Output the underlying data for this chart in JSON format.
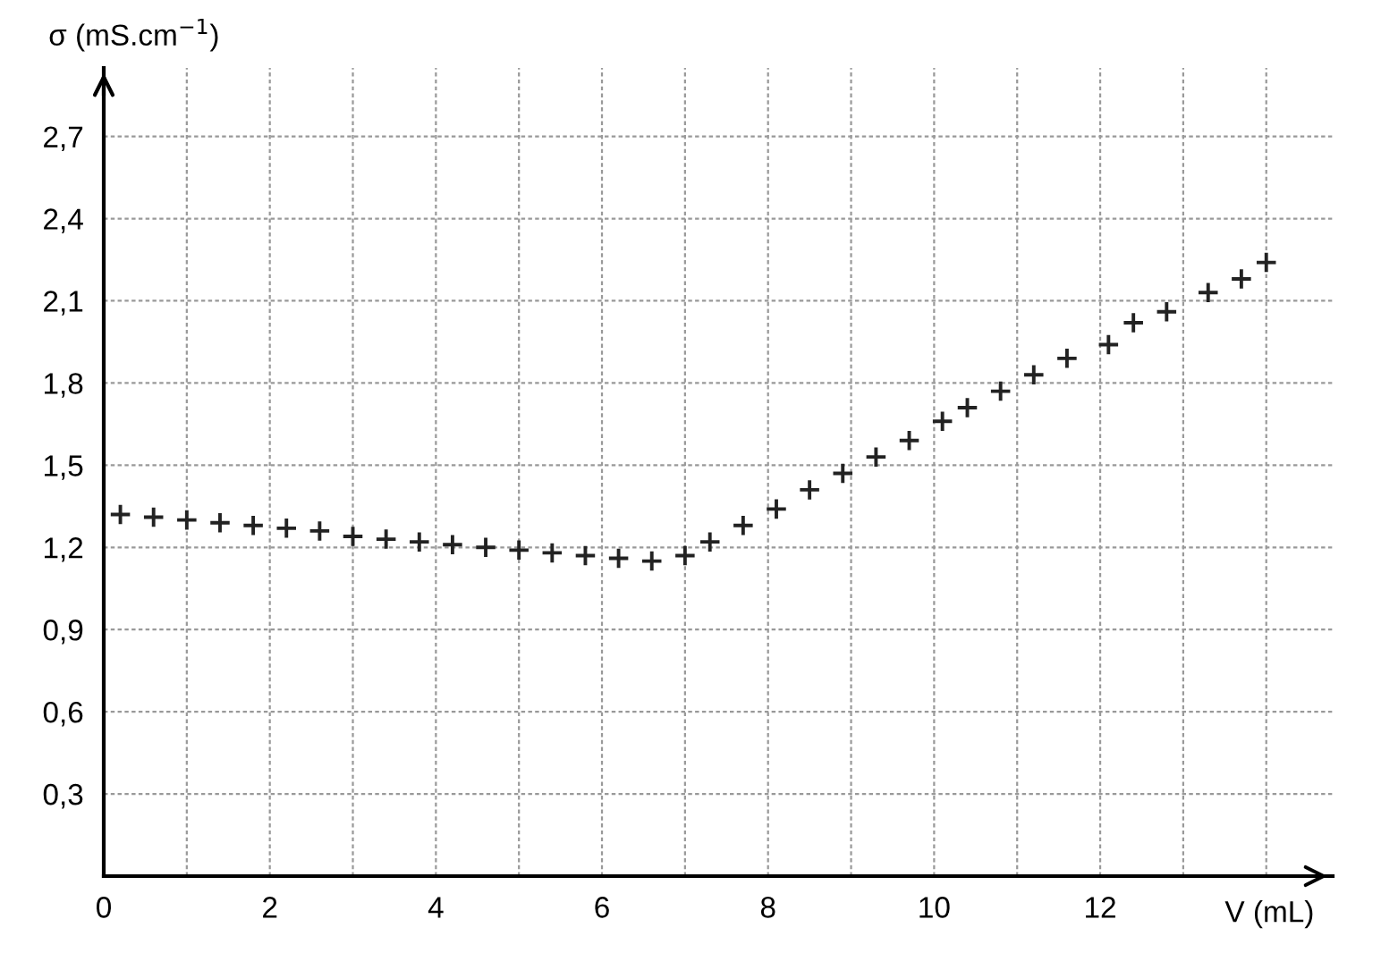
{
  "chart_data": {
    "type": "scatter",
    "xlabel": "V (mL)",
    "ylabel": "σ (mS.cm$^{−1}$)",
    "x": [
      0.2,
      0.6,
      1.0,
      1.4,
      1.8,
      2.2,
      2.6,
      3.0,
      3.4,
      3.8,
      4.2,
      4.6,
      5.0,
      5.4,
      5.8,
      6.2,
      6.6,
      7.0,
      7.3,
      7.7,
      8.1,
      8.5,
      8.9,
      9.3,
      9.7,
      10.1,
      10.4,
      10.8,
      11.2,
      11.6,
      12.1,
      12.4,
      12.8,
      13.3,
      13.7,
      14.0
    ],
    "series": [
      {
        "color": "#222222",
        "values": [
          1.32,
          1.31,
          1.3,
          1.29,
          1.28,
          1.27,
          1.26,
          1.24,
          1.23,
          1.22,
          1.21,
          1.2,
          1.19,
          1.18,
          1.17,
          1.16,
          1.15,
          1.17,
          1.22,
          1.28,
          1.34,
          1.41,
          1.47,
          1.53,
          1.59,
          1.66,
          1.71,
          1.77,
          1.83,
          1.89,
          1.94,
          2.02,
          2.06,
          2.13,
          2.18,
          2.24
        ]
      }
    ],
    "xlim": [
      0,
      14.8
    ],
    "ylim": [
      0,
      2.95
    ],
    "xticks": [
      0,
      {
        "value": 1,
        "label": null
      },
      2,
      {
        "value": 3,
        "label": null
      },
      4,
      {
        "value": 5,
        "label": null
      },
      6,
      {
        "value": 7,
        "label": null
      },
      8,
      {
        "value": 9,
        "label": null
      },
      10,
      {
        "value": 11,
        "label": null
      },
      12,
      {
        "value": 13,
        "label": null
      },
      {
        "value": 14,
        "label": null
      }
    ],
    "yticks": [
      {
        "value": 0.3,
        "label": "0,3"
      },
      {
        "value": 0.6,
        "label": "0,6"
      },
      {
        "value": 0.9,
        "label": "0,9"
      },
      {
        "value": 1.2,
        "label": "1,2"
      },
      {
        "value": 1.5,
        "label": "1,5"
      },
      {
        "value": 1.8,
        "label": "1,8"
      },
      {
        "value": 2.1,
        "label": "2,1"
      },
      {
        "value": 2.4,
        "label": "2,4"
      },
      {
        "value": 2.7,
        "label": "2,7"
      }
    ],
    "grid": true,
    "marker": "cross"
  }
}
